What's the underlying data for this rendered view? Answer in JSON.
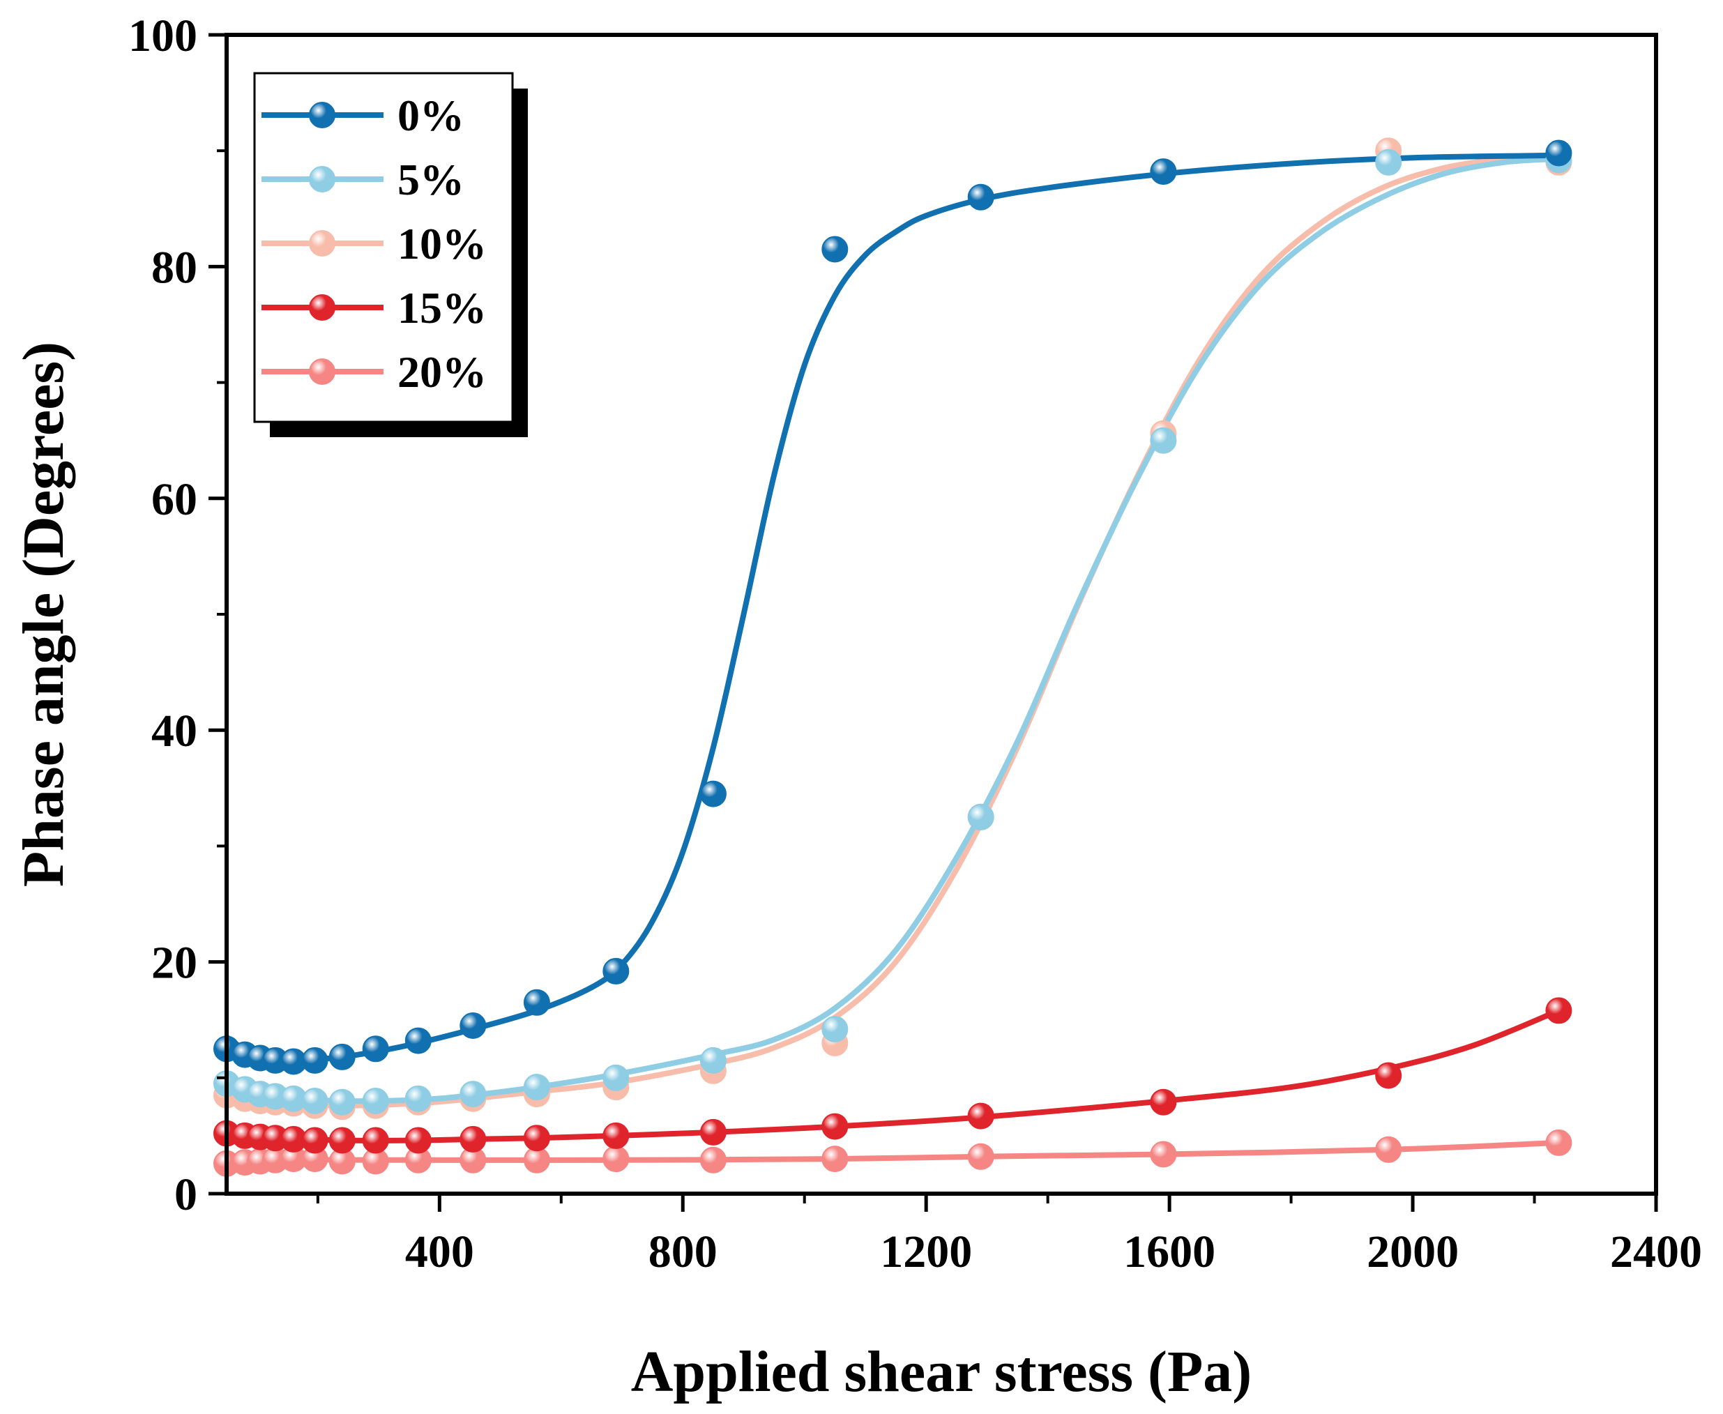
{
  "chart_data": {
    "type": "line",
    "title": "",
    "xlabel": "Applied shear stress (Pa)",
    "ylabel": "Phase angle (Degrees)",
    "xlim": [
      50,
      2400
    ],
    "ylim": [
      0,
      100
    ],
    "xticks": [
      400,
      800,
      1200,
      1600,
      2000,
      2400
    ],
    "xtick_labels": [
      "400",
      "800",
      "1200",
      "1600",
      "2000",
      "2400"
    ],
    "yticks": [
      0,
      20,
      40,
      60,
      80,
      100
    ],
    "ytick_labels": [
      "0",
      "20",
      "40",
      "60",
      "80",
      "100"
    ],
    "grid": false,
    "legend_position": "top-left",
    "markers": "sphere points with smooth fitted curves",
    "series": [
      {
        "name": "0%",
        "color": "#1170b0",
        "points": [
          [
            50,
            12.5
          ],
          [
            80,
            12.0
          ],
          [
            105,
            11.7
          ],
          [
            130,
            11.5
          ],
          [
            160,
            11.4
          ],
          [
            195,
            11.5
          ],
          [
            240,
            11.8
          ],
          [
            295,
            12.5
          ],
          [
            365,
            13.2
          ],
          [
            455,
            14.5
          ],
          [
            560,
            16.5
          ],
          [
            690,
            19.2
          ],
          [
            850,
            34.5
          ],
          [
            1050,
            81.5
          ],
          [
            1290,
            86.0
          ],
          [
            1590,
            88.2
          ],
          [
            2240,
            89.8
          ]
        ],
        "curve": [
          [
            50,
            13.5
          ],
          [
            80,
            12.5
          ],
          [
            130,
            11.8
          ],
          [
            190,
            11.6
          ],
          [
            240,
            11.8
          ],
          [
            300,
            12.3
          ],
          [
            365,
            13.0
          ],
          [
            455,
            14.2
          ],
          [
            560,
            15.8
          ],
          [
            650,
            17.8
          ],
          [
            700,
            19.8
          ],
          [
            750,
            23.5
          ],
          [
            800,
            29.5
          ],
          [
            850,
            38.5
          ],
          [
            900,
            50.0
          ],
          [
            950,
            62.0
          ],
          [
            1000,
            71.5
          ],
          [
            1050,
            77.5
          ],
          [
            1100,
            81.0
          ],
          [
            1150,
            83.0
          ],
          [
            1200,
            84.4
          ],
          [
            1290,
            85.8
          ],
          [
            1400,
            86.8
          ],
          [
            1590,
            88.0
          ],
          [
            1800,
            88.9
          ],
          [
            2000,
            89.4
          ],
          [
            2240,
            89.6
          ]
        ]
      },
      {
        "name": "5%",
        "color": "#8ecde4",
        "points": [
          [
            50,
            9.5
          ],
          [
            80,
            9.0
          ],
          [
            105,
            8.6
          ],
          [
            130,
            8.4
          ],
          [
            160,
            8.2
          ],
          [
            195,
            8.0
          ],
          [
            240,
            7.9
          ],
          [
            295,
            8.0
          ],
          [
            365,
            8.2
          ],
          [
            455,
            8.6
          ],
          [
            560,
            9.2
          ],
          [
            690,
            10.0
          ],
          [
            850,
            11.5
          ],
          [
            1050,
            14.2
          ],
          [
            1290,
            32.5
          ],
          [
            1590,
            65.0
          ],
          [
            1960,
            89.0
          ],
          [
            2240,
            89.2
          ]
        ],
        "curve": [
          [
            50,
            10.2
          ],
          [
            100,
            9.0
          ],
          [
            160,
            8.3
          ],
          [
            240,
            8.0
          ],
          [
            365,
            8.1
          ],
          [
            455,
            8.5
          ],
          [
            560,
            9.2
          ],
          [
            690,
            10.3
          ],
          [
            850,
            12.0
          ],
          [
            950,
            13.3
          ],
          [
            1050,
            16.0
          ],
          [
            1150,
            21.0
          ],
          [
            1250,
            29.0
          ],
          [
            1350,
            39.0
          ],
          [
            1450,
            51.0
          ],
          [
            1550,
            62.0
          ],
          [
            1650,
            71.5
          ],
          [
            1750,
            78.5
          ],
          [
            1850,
            83.0
          ],
          [
            1950,
            86.0
          ],
          [
            2050,
            88.0
          ],
          [
            2150,
            89.0
          ],
          [
            2240,
            89.3
          ]
        ]
      },
      {
        "name": "10%",
        "color": "#f7bdaa",
        "points": [
          [
            50,
            8.5
          ],
          [
            80,
            8.2
          ],
          [
            105,
            8.0
          ],
          [
            130,
            7.9
          ],
          [
            160,
            7.8
          ],
          [
            195,
            7.6
          ],
          [
            240,
            7.5
          ],
          [
            295,
            7.6
          ],
          [
            365,
            7.9
          ],
          [
            455,
            8.2
          ],
          [
            560,
            8.6
          ],
          [
            690,
            9.2
          ],
          [
            850,
            10.6
          ],
          [
            1050,
            13.0
          ],
          [
            1290,
            32.5
          ],
          [
            1590,
            65.6
          ],
          [
            1960,
            90.0
          ],
          [
            2240,
            89.0
          ]
        ],
        "curve": [
          [
            50,
            9.5
          ],
          [
            100,
            8.5
          ],
          [
            160,
            7.9
          ],
          [
            240,
            7.6
          ],
          [
            365,
            7.8
          ],
          [
            455,
            8.2
          ],
          [
            560,
            8.8
          ],
          [
            690,
            9.6
          ],
          [
            850,
            11.2
          ],
          [
            950,
            12.6
          ],
          [
            1050,
            15.2
          ],
          [
            1150,
            20.0
          ],
          [
            1250,
            28.0
          ],
          [
            1350,
            38.5
          ],
          [
            1450,
            50.8
          ],
          [
            1550,
            62.2
          ],
          [
            1650,
            72.0
          ],
          [
            1750,
            79.2
          ],
          [
            1850,
            83.8
          ],
          [
            1950,
            86.8
          ],
          [
            2050,
            88.5
          ],
          [
            2150,
            89.3
          ],
          [
            2240,
            89.5
          ]
        ]
      },
      {
        "name": "15%",
        "color": "#e0242c",
        "points": [
          [
            50,
            5.2
          ],
          [
            80,
            5.0
          ],
          [
            105,
            4.9
          ],
          [
            130,
            4.8
          ],
          [
            160,
            4.7
          ],
          [
            195,
            4.6
          ],
          [
            240,
            4.6
          ],
          [
            295,
            4.6
          ],
          [
            365,
            4.6
          ],
          [
            455,
            4.7
          ],
          [
            560,
            4.8
          ],
          [
            690,
            5.0
          ],
          [
            850,
            5.3
          ],
          [
            1050,
            5.8
          ],
          [
            1290,
            6.7
          ],
          [
            1590,
            7.9
          ],
          [
            1960,
            10.2
          ],
          [
            2240,
            15.8
          ]
        ],
        "curve": [
          [
            50,
            5.5
          ],
          [
            100,
            5.0
          ],
          [
            160,
            4.8
          ],
          [
            240,
            4.6
          ],
          [
            365,
            4.6
          ],
          [
            455,
            4.7
          ],
          [
            560,
            4.8
          ],
          [
            690,
            5.0
          ],
          [
            850,
            5.3
          ],
          [
            1050,
            5.8
          ],
          [
            1290,
            6.6
          ],
          [
            1590,
            8.0
          ],
          [
            1800,
            9.2
          ],
          [
            1960,
            10.8
          ],
          [
            2100,
            12.8
          ],
          [
            2240,
            15.8
          ]
        ]
      },
      {
        "name": "20%",
        "color": "#f58684",
        "points": [
          [
            50,
            2.6
          ],
          [
            80,
            2.7
          ],
          [
            105,
            2.8
          ],
          [
            130,
            2.9
          ],
          [
            160,
            3.0
          ],
          [
            195,
            3.0
          ],
          [
            240,
            2.8
          ],
          [
            295,
            2.8
          ],
          [
            365,
            2.9
          ],
          [
            455,
            2.9
          ],
          [
            560,
            2.9
          ],
          [
            690,
            3.0
          ],
          [
            850,
            2.9
          ],
          [
            1050,
            3.0
          ],
          [
            1290,
            3.2
          ],
          [
            1590,
            3.4
          ],
          [
            1960,
            3.8
          ],
          [
            2240,
            4.4
          ]
        ],
        "curve": [
          [
            50,
            2.7
          ],
          [
            160,
            2.9
          ],
          [
            365,
            2.9
          ],
          [
            690,
            2.9
          ],
          [
            1050,
            3.0
          ],
          [
            1290,
            3.2
          ],
          [
            1590,
            3.4
          ],
          [
            1960,
            3.8
          ],
          [
            2240,
            4.4
          ]
        ]
      }
    ]
  }
}
